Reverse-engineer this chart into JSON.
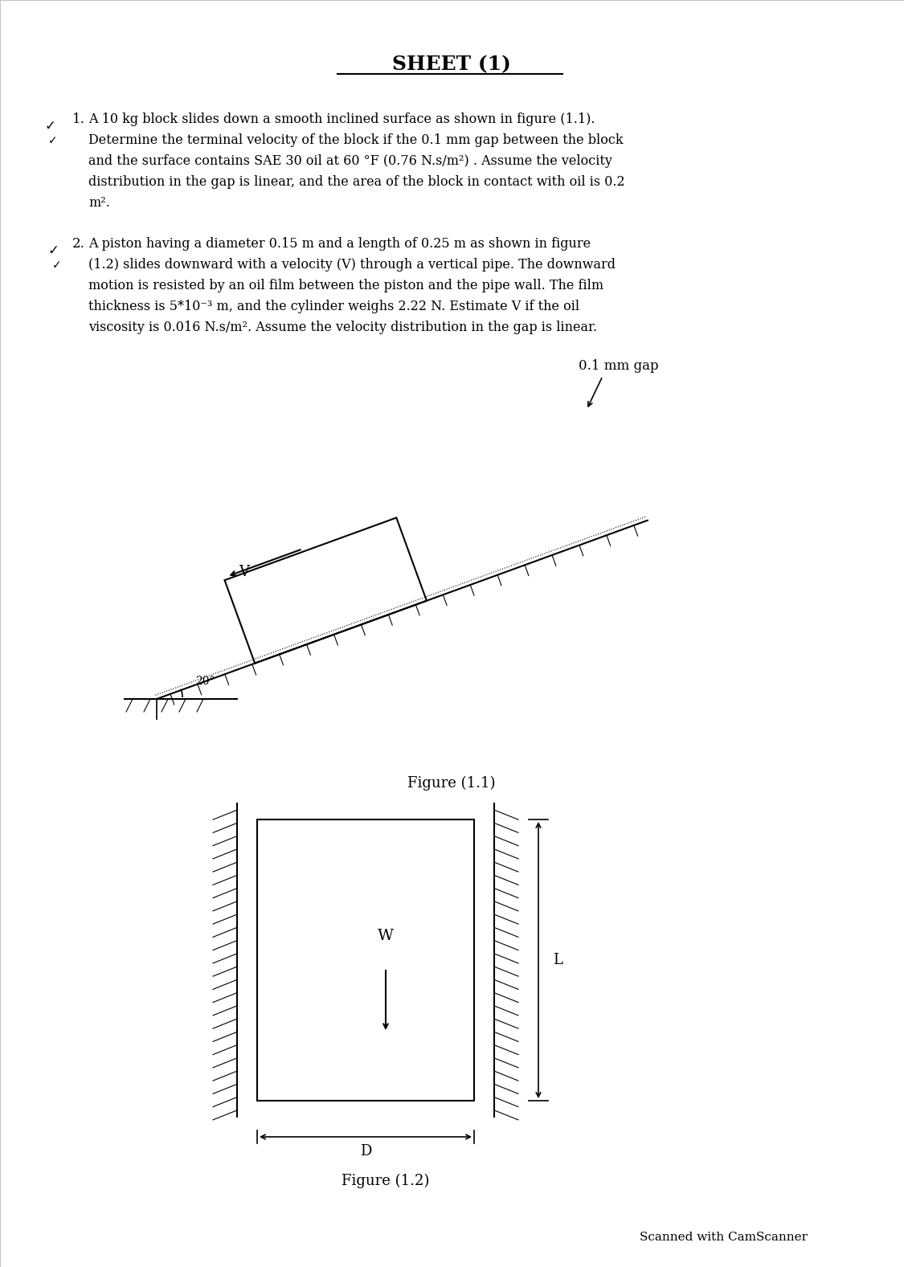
{
  "title": "SHEET (1)",
  "bg_color": "#ffffff",
  "text_color": "#000000",
  "para1_number": "1.",
  "para1_text": "A 10 kg block slides down a smooth inclined surface as shown in figure (1.1).\nDetermine the terminal velocity of the block if the 0.1 mm gap between the block\nand the surface contains SAE 30 oil at 60 °F (0.76 N.s/m²) . Assume the velocity\ndistribution in the gap is linear, and the area of the block in contact with oil is 0.2\nm².",
  "para2_number": "2.",
  "para2_text": "A piston having a diameter 0.15 m and a length of 0.25 m as shown in figure\n(1.2) slides downward with a velocity (V) through a vertical pipe. The downward\nmotion is resisted by an oil film between the piston and the pipe wall. The film\nthickness is 5*10⁻³ m, and the cylinder weighs 2.22 N. Estimate V if the oil\nviscosity is 0.016 N.s/m². Assume the velocity distribution in the gap is linear.",
  "fig11_label": "Figure (1.1)",
  "fig12_label": "Figure (1.2)",
  "gap_label": "0.1 mm gap",
  "angle_label": "20°",
  "V_label": "V",
  "W_label": "W",
  "L_label": "L",
  "D_label": "D",
  "footer": "Scanned with CamScanner",
  "line_color": "#000000"
}
